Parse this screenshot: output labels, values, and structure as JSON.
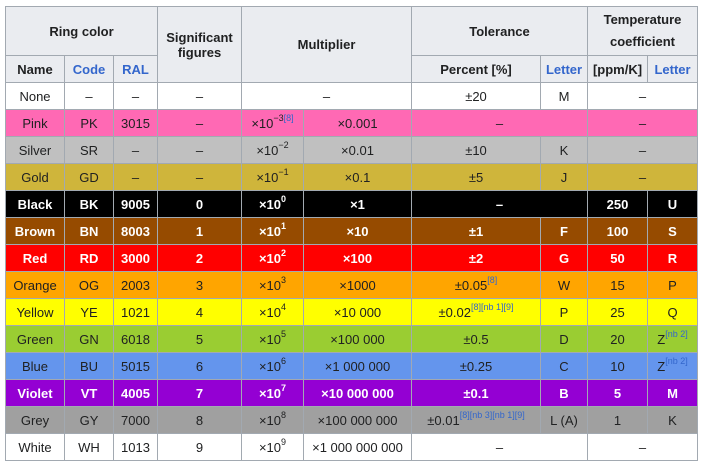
{
  "header": {
    "ring_color": "Ring color",
    "significant_figures": "Significant figures",
    "multiplier": "Multiplier",
    "tolerance": "Tolerance",
    "temp_coeff": "Temperature coefficient",
    "name": "Name",
    "code": "Code",
    "ral": "RAL",
    "percent": "Percent [%]",
    "tol_letter": "Letter",
    "ppm": "[ppm/K]",
    "tc_letter": "Letter"
  },
  "rows": [
    {
      "name": "None",
      "code": "–",
      "ral": "–",
      "sig": "–",
      "mult_exp": "",
      "mult_dec": "–",
      "tol_pct": "±20",
      "tol_letter": "M",
      "tc": "–",
      "tc_letter": "",
      "bg": "#ffffff",
      "fg": "#202122",
      "bold": false,
      "merge": "mult-and-tc"
    },
    {
      "name": "Pink",
      "code": "PK",
      "ral": "3015",
      "sig": "–",
      "mult_exp": "−3",
      "mult_ref": "[8]",
      "mult_dec": "×0.001",
      "tol_pct": "–",
      "tol_letter": "",
      "tc": "–",
      "tc_letter": "",
      "bg": "#ff69b4",
      "fg": "#202122",
      "bold": false,
      "merge": "tol-and-tc"
    },
    {
      "name": "Silver",
      "code": "SR",
      "ral": "–",
      "sig": "–",
      "mult_exp": "−2",
      "mult_dec": "×0.01",
      "tol_pct": "±10",
      "tol_letter": "K",
      "tc": "–",
      "tc_letter": "",
      "bg": "#c0c0c0",
      "fg": "#202122",
      "bold": false,
      "merge": "tc"
    },
    {
      "name": "Gold",
      "code": "GD",
      "ral": "–",
      "sig": "–",
      "mult_exp": "−1",
      "mult_dec": "×0.1",
      "tol_pct": "±5",
      "tol_letter": "J",
      "tc": "–",
      "tc_letter": "",
      "bg": "#cfb53b",
      "fg": "#202122",
      "bold": false,
      "merge": "tc"
    },
    {
      "name": "Black",
      "code": "BK",
      "ral": "9005",
      "sig": "0",
      "mult_exp": "0",
      "mult_dec": "×1",
      "tol_pct": "–",
      "tol_letter": "",
      "tc": "250",
      "tc_letter": "U",
      "bg": "#000000",
      "fg": "#ffffff",
      "bold": true,
      "merge": "tol"
    },
    {
      "name": "Brown",
      "code": "BN",
      "ral": "8003",
      "sig": "1",
      "mult_exp": "1",
      "mult_dec": "×10",
      "tol_pct": "±1",
      "tol_letter": "F",
      "tc": "100",
      "tc_letter": "S",
      "bg": "#964b00",
      "fg": "#ffffff",
      "bold": true,
      "merge": "none"
    },
    {
      "name": "Red",
      "code": "RD",
      "ral": "3000",
      "sig": "2",
      "mult_exp": "2",
      "mult_dec": "×100",
      "tol_pct": "±2",
      "tol_letter": "G",
      "tc": "50",
      "tc_letter": "R",
      "bg": "#ff0000",
      "fg": "#ffffff",
      "bold": true,
      "merge": "none"
    },
    {
      "name": "Orange",
      "code": "OG",
      "ral": "2003",
      "sig": "3",
      "mult_exp": "3",
      "mult_dec": "×1000",
      "tol_pct": "±0.05",
      "tol_pct_ref": "[8]",
      "tol_letter": "W",
      "tc": "15",
      "tc_letter": "P",
      "bg": "#ffa500",
      "fg": "#202122",
      "bold": false,
      "merge": "none"
    },
    {
      "name": "Yellow",
      "code": "YE",
      "ral": "1021",
      "sig": "4",
      "mult_exp": "4",
      "mult_dec": "×10 000",
      "tol_pct": "±0.02",
      "tol_pct_ref": "[8][nb 1][9]",
      "tol_letter": "P",
      "tc": "25",
      "tc_letter": "Q",
      "bg": "#ffff00",
      "fg": "#202122",
      "bold": false,
      "merge": "none"
    },
    {
      "name": "Green",
      "code": "GN",
      "ral": "6018",
      "sig": "5",
      "mult_exp": "5",
      "mult_dec": "×100 000",
      "tol_pct": "±0.5",
      "tol_letter": "D",
      "tc": "20",
      "tc_letter": "Z",
      "tc_letter_ref": "[nb 2]",
      "bg": "#9acd32",
      "fg": "#202122",
      "bold": false,
      "merge": "none"
    },
    {
      "name": "Blue",
      "code": "BU",
      "ral": "5015",
      "sig": "6",
      "mult_exp": "6",
      "mult_dec": "×1 000 000",
      "tol_pct": "±0.25",
      "tol_letter": "C",
      "tc": "10",
      "tc_letter": "Z",
      "tc_letter_ref": "[nb 2]",
      "bg": "#6495ed",
      "fg": "#202122",
      "bold": false,
      "merge": "none"
    },
    {
      "name": "Violet",
      "code": "VT",
      "ral": "4005",
      "sig": "7",
      "mult_exp": "7",
      "mult_dec": "×10 000 000",
      "tol_pct": "±0.1",
      "tol_letter": "B",
      "tc": "5",
      "tc_letter": "M",
      "bg": "#9400d3",
      "fg": "#ffffff",
      "bold": true,
      "merge": "none"
    },
    {
      "name": "Grey",
      "code": "GY",
      "ral": "7000",
      "sig": "8",
      "mult_exp": "8",
      "mult_dec": "×100 000 000",
      "tol_pct": "±0.01",
      "tol_pct_ref": "[8][nb 3][nb 1][9]",
      "tol_letter": "L (A)",
      "tc": "1",
      "tc_letter": "K",
      "bg": "#a0a0a0",
      "fg": "#202122",
      "bold": false,
      "merge": "none"
    },
    {
      "name": "White",
      "code": "WH",
      "ral": "1013",
      "sig": "9",
      "mult_exp": "9",
      "mult_dec": "×1 000 000 000",
      "tol_pct": "–",
      "tol_letter": "",
      "tc": "–",
      "tc_letter": "",
      "bg": "#ffffff",
      "fg": "#202122",
      "bold": false,
      "merge": "tol-and-tc"
    }
  ]
}
